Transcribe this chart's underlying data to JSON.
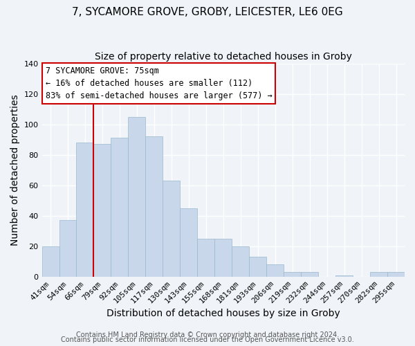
{
  "title": "7, SYCAMORE GROVE, GROBY, LEICESTER, LE6 0EG",
  "subtitle": "Size of property relative to detached houses in Groby",
  "xlabel": "Distribution of detached houses by size in Groby",
  "ylabel": "Number of detached properties",
  "bar_color": "#c8d8ea",
  "bar_edge_color": "#9ab8d0",
  "categories": [
    "41sqm",
    "54sqm",
    "66sqm",
    "79sqm",
    "92sqm",
    "105sqm",
    "117sqm",
    "130sqm",
    "143sqm",
    "155sqm",
    "168sqm",
    "181sqm",
    "193sqm",
    "206sqm",
    "219sqm",
    "232sqm",
    "244sqm",
    "257sqm",
    "270sqm",
    "282sqm",
    "295sqm"
  ],
  "values": [
    20,
    37,
    88,
    87,
    91,
    105,
    92,
    63,
    45,
    25,
    25,
    20,
    13,
    8,
    3,
    3,
    0,
    1,
    0,
    3,
    3
  ],
  "ylim": [
    0,
    140
  ],
  "yticks": [
    0,
    20,
    40,
    60,
    80,
    100,
    120,
    140
  ],
  "vline_x": 2.5,
  "vline_color": "#cc0000",
  "annotation_text": "7 SYCAMORE GROVE: 75sqm\n← 16% of detached houses are smaller (112)\n83% of semi-detached houses are larger (577) →",
  "annotation_box_color": "#ffffff",
  "annotation_box_edge": "#cc0000",
  "footer1": "Contains HM Land Registry data © Crown copyright and database right 2024.",
  "footer2": "Contains public sector information licensed under the Open Government Licence v3.0.",
  "background_color": "#f0f4f8",
  "title_fontsize": 11,
  "subtitle_fontsize": 10,
  "axis_label_fontsize": 10,
  "tick_fontsize": 8,
  "annotation_fontsize": 8.5,
  "footer_fontsize": 7
}
